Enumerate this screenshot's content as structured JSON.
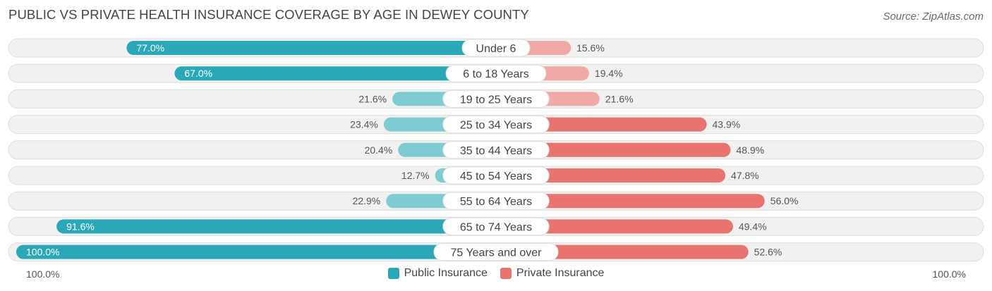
{
  "title": "PUBLIC VS PRIVATE HEALTH INSURANCE COVERAGE BY AGE IN DEWEY COUNTY",
  "source": "Source: ZipAtlas.com",
  "axis": {
    "left_label": "100.0%",
    "right_label": "100.0%"
  },
  "legend": {
    "public_label": "Public Insurance",
    "private_label": "Private Insurance"
  },
  "colors": {
    "public_strong": "#2aa8b8",
    "public_light": "#7fcbd4",
    "private_strong": "#e8736f",
    "private_light": "#f1a9a6",
    "track": "#f1f1f1",
    "track_border": "#dedede"
  },
  "chart_data": {
    "type": "bar",
    "orientation": "horizontal-diverging",
    "categories": [
      "Under 6",
      "6 to 18 Years",
      "19 to 25 Years",
      "25 to 34 Years",
      "35 to 44 Years",
      "45 to 54 Years",
      "55 to 64 Years",
      "65 to 74 Years",
      "75 Years and over"
    ],
    "series": [
      {
        "name": "Public Insurance",
        "values": [
          77.0,
          67.0,
          21.6,
          23.4,
          20.4,
          12.7,
          22.9,
          91.6,
          100.0
        ],
        "labels": [
          "77.0%",
          "67.0%",
          "21.6%",
          "23.4%",
          "20.4%",
          "12.7%",
          "22.9%",
          "91.6%",
          "100.0%"
        ]
      },
      {
        "name": "Private Insurance",
        "values": [
          15.6,
          19.4,
          21.6,
          43.9,
          48.9,
          47.8,
          56.0,
          49.4,
          52.6
        ],
        "labels": [
          "15.6%",
          "19.4%",
          "21.6%",
          "43.9%",
          "48.9%",
          "47.8%",
          "56.0%",
          "49.4%",
          "52.6%"
        ]
      }
    ],
    "xlim": [
      -100,
      100
    ],
    "legend_position": "bottom-center"
  }
}
